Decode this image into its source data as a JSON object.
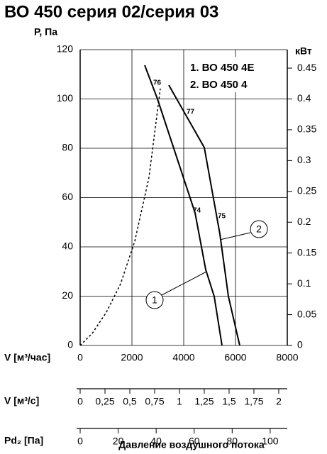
{
  "chart_data": {
    "type": "line",
    "title": "ВО 450 серия 02/серия 03",
    "y_label": "Р, Па",
    "y2_label": "кВт",
    "x_label": "V [м³/час]",
    "xlim": [
      0,
      8000
    ],
    "xticks": [
      0,
      2000,
      4000,
      6000,
      8000
    ],
    "ylim": [
      0,
      120
    ],
    "yticks": [
      0,
      20,
      40,
      60,
      80,
      100,
      120
    ],
    "y2lim": [
      0,
      0.48
    ],
    "y2ticks": [
      0,
      0.05,
      0.1,
      0.15,
      0.2,
      0.25,
      0.3,
      0.35,
      0.4,
      0.45
    ],
    "grid": true,
    "series": [
      {
        "name": "1. ВО 450 4Е",
        "color": "#000000",
        "x": [
          2493,
          2986,
          4438,
          4849,
          5178,
          5479
        ],
        "values": [
          113.7,
          100,
          53.8,
          30.8,
          19.9,
          0
        ]
      },
      {
        "name": "2. ВО 450 4",
        "color": "#000000",
        "x": [
          3425,
          4795,
          5397,
          5726,
          6164
        ],
        "values": [
          105.6,
          80.3,
          45.2,
          19.9,
          0
        ]
      },
      {
        "color": "#000000",
        "dashed": true,
        "x": [
          0,
          466,
          1014,
          1562,
          2110,
          2658,
          3096
        ],
        "values": [
          0,
          4.9,
          13.5,
          25,
          42.3,
          68.2,
          104.2
        ]
      }
    ],
    "annotations": [
      "76",
      "77",
      "74",
      "75",
      "1",
      "2"
    ],
    "scales": [
      {
        "label": "V [м³/с]",
        "lim": [
          0,
          2.086
        ],
        "ticks": [
          0,
          {
            "value": 0.25,
            "label": "0,25"
          },
          {
            "value": 0.5,
            "label": "0,5"
          },
          {
            "value": 0.75,
            "label": "0,75"
          },
          1,
          {
            "value": 1.25,
            "label": "1,25"
          },
          {
            "value": 1.5,
            "label": "1,5"
          },
          {
            "value": 1.75,
            "label": "1,75"
          },
          2
        ]
      },
      {
        "label": "Pd₂ [Па]",
        "lim": [
          0,
          109
        ],
        "ticks": [
          0,
          20,
          40,
          60,
          80,
          100
        ]
      }
    ],
    "footer": "Давление воздушного потока"
  }
}
